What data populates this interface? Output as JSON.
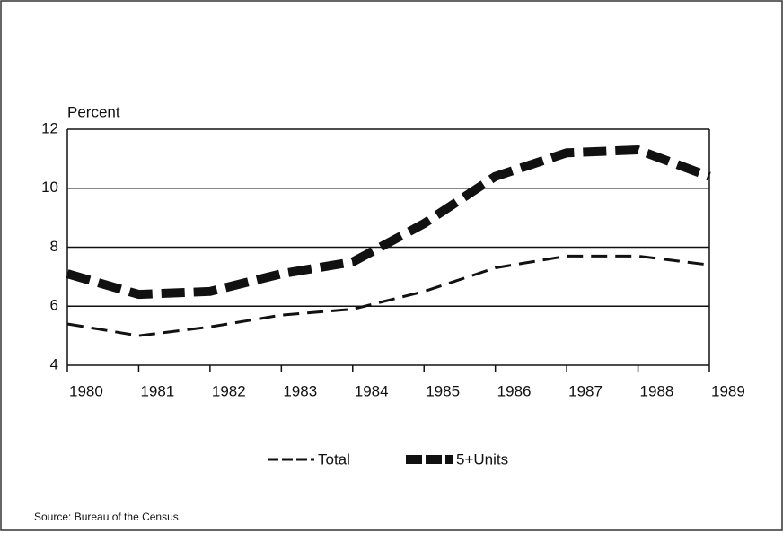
{
  "chart_data": {
    "type": "line",
    "y_label": "Percent",
    "source": "Source: Bureau of the Census.",
    "categories": [
      "1980",
      "1981",
      "1982",
      "1983",
      "1984",
      "1985",
      "1986",
      "1987",
      "1988",
      "1989"
    ],
    "series": [
      {
        "name": "Total",
        "color": "#111111",
        "values": [
          5.4,
          5.0,
          5.3,
          5.7,
          5.9,
          6.5,
          7.3,
          7.7,
          7.7,
          7.4
        ]
      },
      {
        "name": "5+Units",
        "color": "#111111",
        "values": [
          7.1,
          6.4,
          6.5,
          7.1,
          7.5,
          8.8,
          10.4,
          11.2,
          11.3,
          10.4
        ]
      }
    ],
    "ylim": [
      4,
      12
    ],
    "yticks": [
      4,
      6,
      8,
      10,
      12
    ],
    "grid": true
  }
}
